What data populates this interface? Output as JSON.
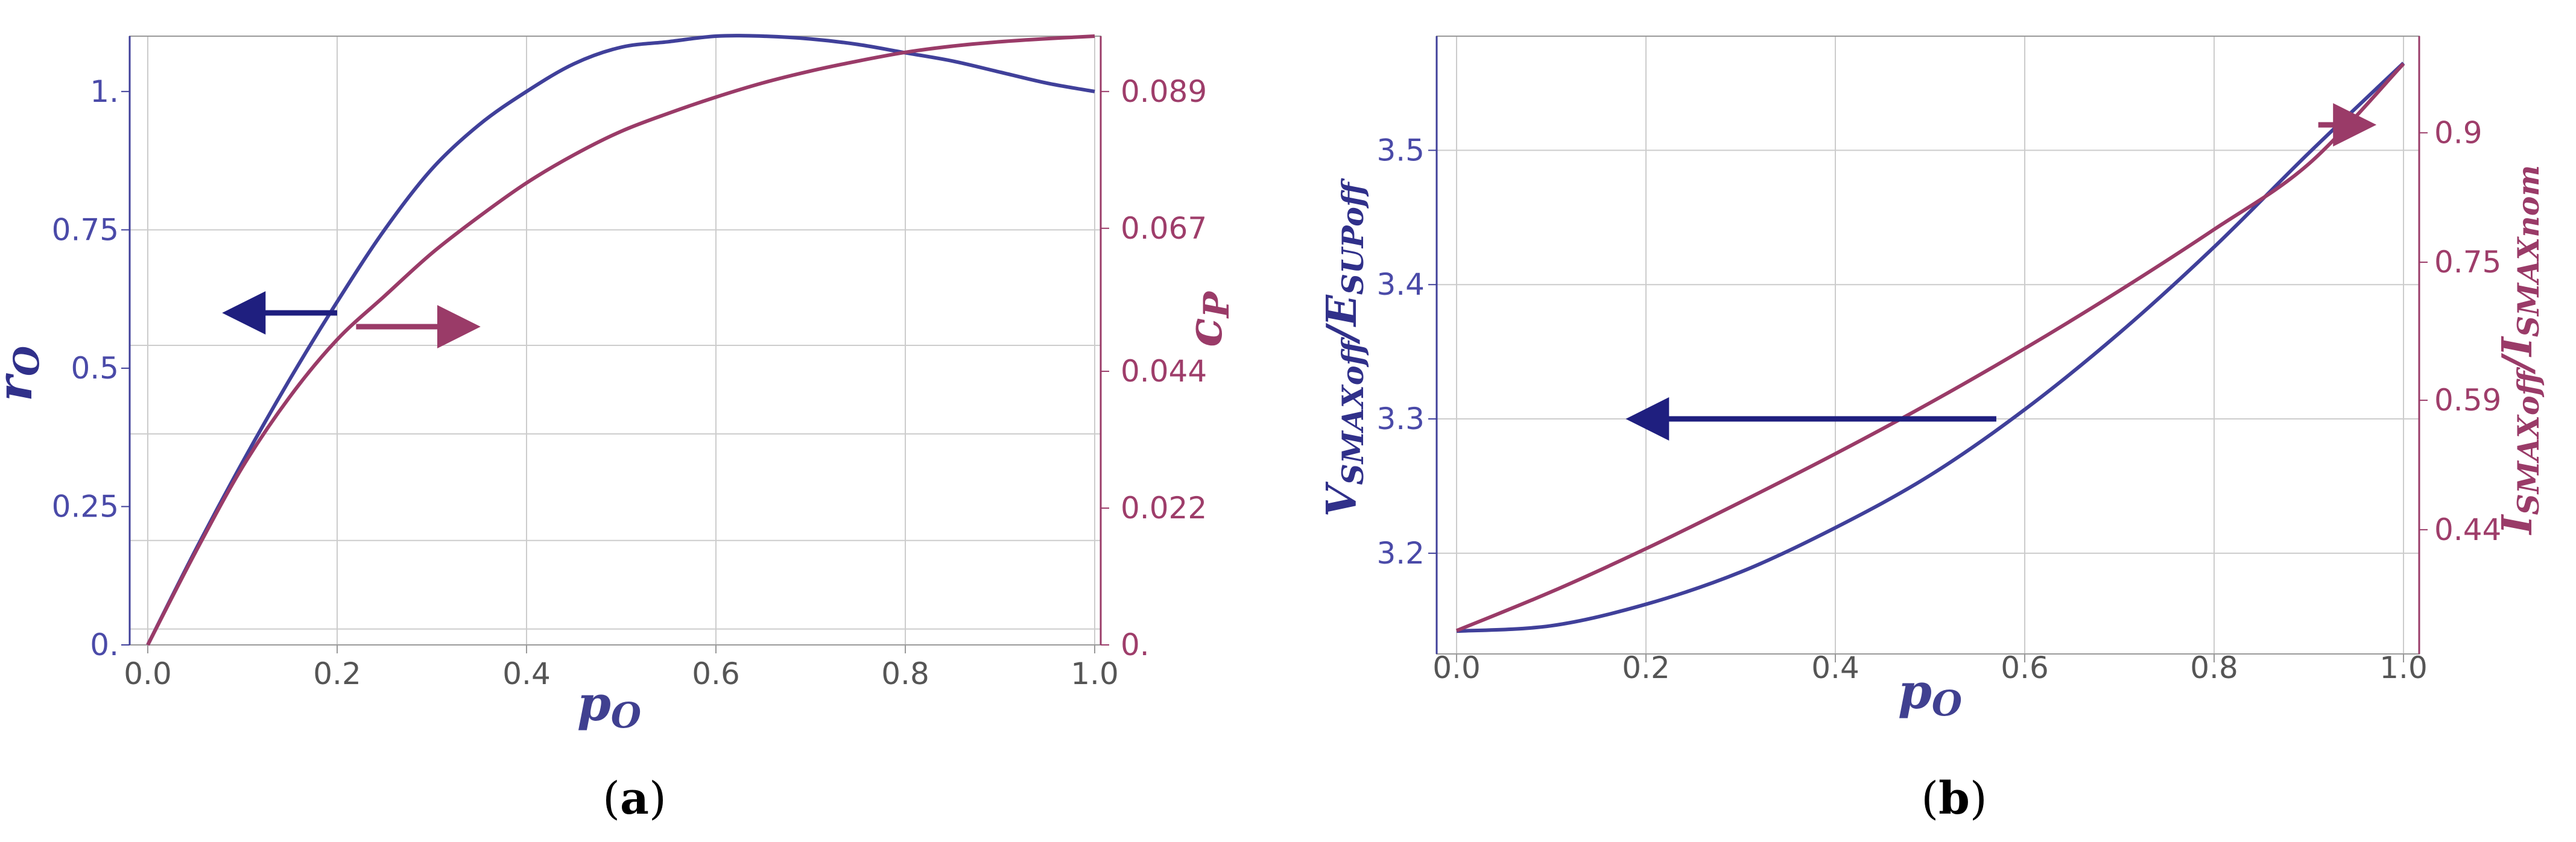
{
  "colors": {
    "left": "#40409a",
    "right": "#9a3b68",
    "arrow_left": "#1f1f7f",
    "arrow_right": "#9a3b68",
    "grid": "#cccccc",
    "frame": "#999999",
    "tick_x": "#555555",
    "tick_left": "#4a4aa8",
    "tick_right": "#9e3d6a"
  },
  "chart_data": [
    {
      "type": "line",
      "caption": "(a)",
      "xlabel": "p",
      "xlabel_sub": "O",
      "ylabel_left": "r",
      "ylabel_left_sub": "O",
      "ylabel_right": "c",
      "ylabel_right_sub": "P",
      "xlim": [
        0,
        1
      ],
      "ylim_left": [
        0,
        1.1
      ],
      "ylim_right": [
        0,
        0.0979
      ],
      "x_ticks": [
        "0.0",
        "0.2",
        "0.4",
        "0.6",
        "0.8",
        "1.0"
      ],
      "y_left_ticks": [
        "0.",
        "0.25",
        "0.5",
        "0.75",
        "1."
      ],
      "y_right_ticks": [
        "0.",
        "0.022",
        "0.044",
        "0.067",
        "0.089"
      ],
      "series": [
        {
          "axis": "left",
          "x": [
            0,
            0.05,
            0.1,
            0.15,
            0.2,
            0.25,
            0.3,
            0.35,
            0.4,
            0.45,
            0.5,
            0.55,
            0.6,
            0.65,
            0.7,
            0.75,
            0.8,
            0.85,
            0.9,
            0.95,
            1.0
          ],
          "y": [
            0,
            0.17,
            0.33,
            0.48,
            0.62,
            0.75,
            0.86,
            0.94,
            1.0,
            1.05,
            1.08,
            1.09,
            1.1,
            1.1,
            1.095,
            1.085,
            1.07,
            1.055,
            1.035,
            1.015,
            1.0
          ]
        },
        {
          "axis": "right",
          "x": [
            0,
            0.05,
            0.1,
            0.15,
            0.2,
            0.25,
            0.3,
            0.35,
            0.4,
            0.45,
            0.5,
            0.55,
            0.6,
            0.65,
            0.7,
            0.75,
            0.8,
            0.85,
            0.9,
            0.95,
            1.0
          ],
          "y": [
            0,
            0.0148,
            0.0286,
            0.0399,
            0.0491,
            0.0561,
            0.063,
            0.0689,
            0.0743,
            0.0788,
            0.0826,
            0.0855,
            0.0881,
            0.0904,
            0.0923,
            0.0939,
            0.0953,
            0.0963,
            0.097,
            0.0975,
            0.0979
          ]
        }
      ],
      "annotations": [
        {
          "kind": "arrow",
          "direction": "left",
          "axis": "left",
          "y": 0.6,
          "x_from": 0.2,
          "x_to": 0.09
        },
        {
          "kind": "arrow",
          "direction": "right",
          "axis": "left",
          "y": 0.575,
          "x_from": 0.22,
          "x_to": 0.34
        }
      ]
    },
    {
      "type": "line",
      "caption": "(b)",
      "xlabel": "p",
      "xlabel_sub": "O",
      "ylabel_left": "V",
      "ylabel_left_sub": "SMAXoff",
      "ylabel_left_mid": "/E",
      "ylabel_left_sub2": "SUPoff",
      "ylabel_right": "I",
      "ylabel_right_sub": "SMAXoff",
      "ylabel_right_mid": "/I",
      "ylabel_right_sub2": "SMAXnom",
      "xlim": [
        0,
        1
      ],
      "ylim_left": [
        3.125,
        3.585
      ],
      "ylim_right": [
        0.296,
        1.012
      ],
      "x_ticks": [
        "0.0",
        "0.2",
        "0.4",
        "0.6",
        "0.8",
        "1.0"
      ],
      "y_left_ticks": [
        "3.2",
        "3.3",
        "3.4",
        "3.5"
      ],
      "y_right_ticks": [
        "0.44",
        "0.59",
        "0.75",
        "0.9"
      ],
      "series": [
        {
          "axis": "left",
          "x": [
            0,
            0.1,
            0.2,
            0.3,
            0.4,
            0.5,
            0.6,
            0.7,
            0.8,
            0.9,
            1.0
          ],
          "y": [
            3.142,
            3.146,
            3.162,
            3.186,
            3.219,
            3.258,
            3.307,
            3.364,
            3.428,
            3.498,
            3.565
          ]
        },
        {
          "axis": "right",
          "x": [
            0,
            0.1,
            0.2,
            0.3,
            0.4,
            0.5,
            0.6,
            0.7,
            0.8,
            0.9,
            1.0
          ],
          "y": [
            0.323,
            0.368,
            0.418,
            0.472,
            0.528,
            0.587,
            0.65,
            0.717,
            0.788,
            0.864,
            0.98
          ]
        }
      ],
      "annotations": [
        {
          "kind": "arrow",
          "direction": "left",
          "axis": "left",
          "y": 3.3,
          "x_from": 0.57,
          "x_to": 0.19
        },
        {
          "kind": "arrow",
          "direction": "right",
          "axis": "left",
          "y": 3.519,
          "x_from": 0.91,
          "x_to": 0.96
        }
      ]
    }
  ]
}
